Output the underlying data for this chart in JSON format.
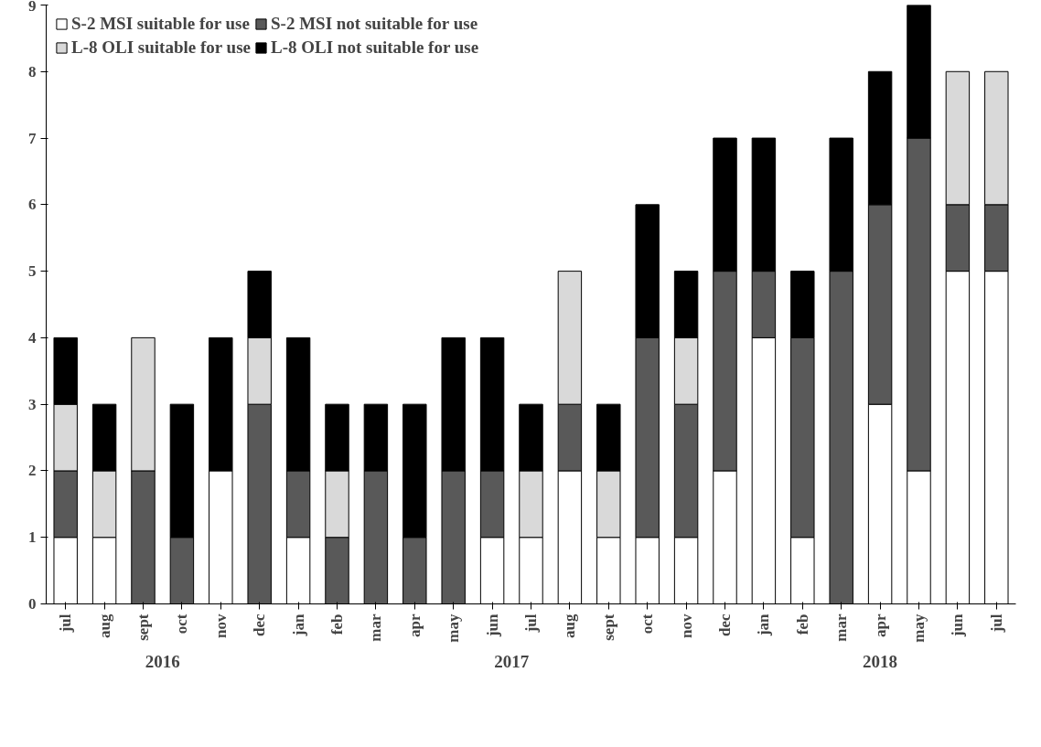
{
  "chart_data": {
    "type": "bar",
    "stacked": true,
    "categories": [
      "jul",
      "aug",
      "sept",
      "oct",
      "nov",
      "dec",
      "jan",
      "feb",
      "mar",
      "apr",
      "may",
      "jun",
      "jul",
      "aug",
      "sept",
      "oct",
      "nov",
      "dec",
      "jan",
      "feb",
      "mar",
      "apr",
      "may",
      "jun",
      "jul"
    ],
    "series": [
      {
        "name": "S-2 MSI suitable for use",
        "color": "#ffffff",
        "values": [
          1,
          1,
          0,
          0,
          2,
          0,
          1,
          0,
          0,
          0,
          0,
          1,
          1,
          2,
          1,
          1,
          1,
          2,
          4,
          1,
          0,
          3,
          2,
          5,
          5
        ]
      },
      {
        "name": "S-2 MSI not suitable for use",
        "color": "#595959",
        "values": [
          1,
          0,
          2,
          1,
          0,
          3,
          1,
          1,
          2,
          1,
          2,
          1,
          0,
          1,
          0,
          3,
          2,
          3,
          1,
          3,
          5,
          3,
          5,
          1,
          1
        ]
      },
      {
        "name": "L-8 OLI suitable for use",
        "color": "#d9d9d9",
        "values": [
          1,
          1,
          2,
          0,
          0,
          1,
          0,
          1,
          0,
          0,
          0,
          0,
          1,
          2,
          1,
          0,
          1,
          0,
          0,
          0,
          0,
          0,
          0,
          2,
          2
        ]
      },
      {
        "name": "L-8 OLI not suitable for use",
        "color": "#000000",
        "values": [
          1,
          1,
          0,
          2,
          2,
          1,
          2,
          1,
          1,
          2,
          2,
          2,
          1,
          0,
          1,
          2,
          1,
          2,
          2,
          1,
          2,
          2,
          2,
          0,
          0
        ]
      }
    ],
    "annotations": [
      "2016",
      "2017",
      "2018"
    ],
    "ylim": [
      0,
      9
    ],
    "yticks": [
      0,
      1,
      2,
      3,
      4,
      5,
      6,
      7,
      8,
      9
    ],
    "grid": false,
    "legend": "top left"
  }
}
